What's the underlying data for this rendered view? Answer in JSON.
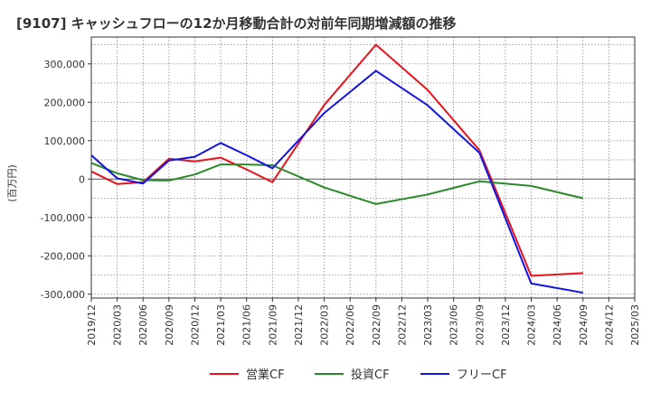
{
  "chart_data": {
    "type": "line",
    "title": "[9107]  キャッシュフローの12か月移動合計の対前年同期増減額の推移",
    "ylabel": "(百万円)",
    "xlabel": "",
    "ylim": [
      -310000,
      370000
    ],
    "y_ticks": [
      300000,
      200000,
      100000,
      0,
      -100000,
      -200000,
      -300000
    ],
    "y_tick_labels": [
      "300,000",
      "200,000",
      "100,000",
      "0",
      "-100,000",
      "-200,000",
      "-300,000"
    ],
    "x_tick_labels": [
      "2019/12",
      "2020/03",
      "2020/06",
      "2020/09",
      "2020/12",
      "2021/03",
      "2021/06",
      "2021/09",
      "2021/12",
      "2022/03",
      "2022/06",
      "2022/09",
      "2022/12",
      "2023/03",
      "2023/06",
      "2023/09",
      "2023/12",
      "2024/03",
      "2024/06",
      "2024/09",
      "2024/12",
      "2025/03"
    ],
    "grid": true,
    "legend_position": "bottom",
    "series": [
      {
        "name": "営業CF",
        "color": "#e8141c",
        "x": [
          "2019/12",
          "2020/03",
          "2020/06",
          "2020/09",
          "2020/12",
          "2021/03",
          "2021/06",
          "2021/09",
          "2022/03",
          "2022/09",
          "2023/03",
          "2023/09",
          "2024/03",
          "2024/09"
        ],
        "values": [
          20000,
          -13000,
          -8000,
          53000,
          46000,
          56000,
          25000,
          -8000,
          193000,
          350000,
          232000,
          75000,
          -252000,
          -245000
        ]
      },
      {
        "name": "投資CF",
        "color": "#2a8a2a",
        "x": [
          "2019/12",
          "2020/03",
          "2020/06",
          "2020/09",
          "2020/12",
          "2021/03",
          "2021/06",
          "2021/09",
          "2022/03",
          "2022/09",
          "2023/03",
          "2023/09",
          "2024/03",
          "2024/09"
        ],
        "values": [
          42000,
          15000,
          -3000,
          -4000,
          12000,
          38000,
          38000,
          36000,
          -22000,
          -65000,
          -40000,
          -6000,
          -18000,
          -50000
        ]
      },
      {
        "name": "フリーCF",
        "color": "#1414e0",
        "x": [
          "2019/12",
          "2020/03",
          "2020/06",
          "2020/09",
          "2020/12",
          "2021/03",
          "2021/06",
          "2021/09",
          "2022/03",
          "2022/09",
          "2023/03",
          "2023/09",
          "2024/03",
          "2024/09"
        ],
        "values": [
          62000,
          2000,
          -12000,
          48000,
          58000,
          94000,
          62000,
          28000,
          172000,
          282000,
          192000,
          68000,
          -272000,
          -296000
        ]
      }
    ]
  }
}
